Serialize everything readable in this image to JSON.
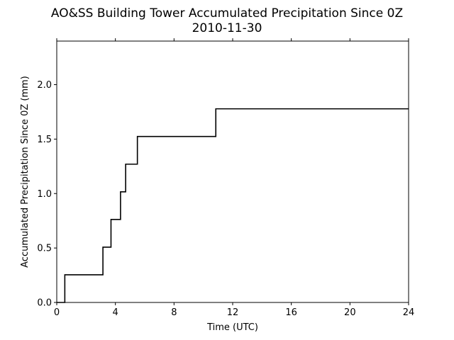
{
  "chart_data": {
    "type": "line",
    "title": "AO&SS Building Tower Accumulated Precipitation Since 0Z",
    "subtitle": "2010-11-30",
    "xlabel": "Time (UTC)",
    "ylabel": "Accumulated Precipitation Since 0Z (mm)",
    "xlim": [
      0,
      24
    ],
    "ylim": [
      0,
      2.4
    ],
    "xticks": [
      0,
      4,
      8,
      12,
      16,
      20,
      24
    ],
    "xtick_labels": [
      "0",
      "4",
      "8",
      "12",
      "16",
      "20",
      "24"
    ],
    "yticks": [
      0,
      0.5,
      1.0,
      1.5,
      2.0
    ],
    "ytick_labels": [
      "0.0",
      "0.5",
      "1.0",
      "1.5",
      "2.0"
    ],
    "grid": false,
    "line_color": "#000000",
    "series": [
      {
        "step": "post",
        "x": [
          0,
          0.55,
          3.15,
          3.7,
          4.35,
          4.7,
          5.5,
          10.85,
          24
        ],
        "y": [
          0,
          0.254,
          0.508,
          0.762,
          1.016,
          1.27,
          1.524,
          1.778,
          1.778
        ]
      }
    ]
  }
}
